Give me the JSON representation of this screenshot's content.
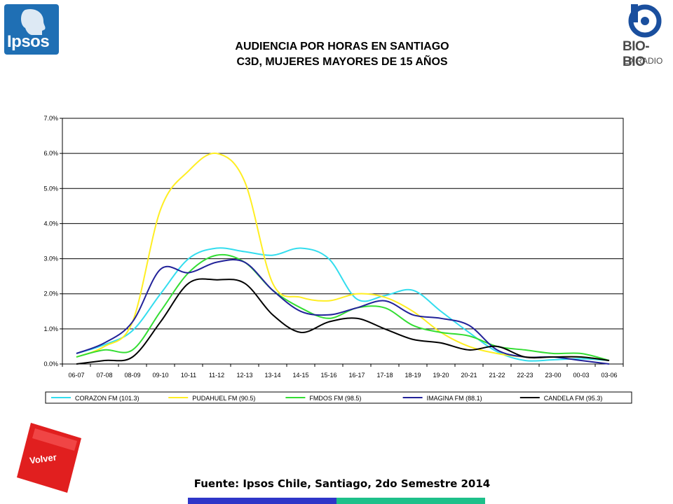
{
  "title_line1": "AUDIENCIA POR HORAS EN SANTIAGO",
  "title_line2": "C3D, MUJERES MAYORES DE 15 AÑOS",
  "source": "Fuente: Ipsos Chile, Santiago, 2do Semestre 2014",
  "logos": {
    "left": "Ipsos",
    "right_main": "BIO-BIO",
    "right_sub": "LA RADIO"
  },
  "button_volver": "Volver",
  "colors": {
    "ipsos_blue": "#1f6fb4",
    "volver_red": "#e11f1f",
    "bar_blue": "#2e36c8",
    "bar_teal": "#1ec08a"
  },
  "chart_data": {
    "type": "line",
    "title": "",
    "xlabel": "",
    "ylabel": "",
    "ylim": [
      0,
      7
    ],
    "yticks": [
      "0.0%",
      "1.0%",
      "2.0%",
      "3.0%",
      "4.0%",
      "5.0%",
      "6.0%",
      "7.0%"
    ],
    "grid": true,
    "legend_position": "bottom",
    "categories": [
      "06-07",
      "07-08",
      "08-09",
      "09-10",
      "10-11",
      "11-12",
      "12-13",
      "13-14",
      "14-15",
      "15-16",
      "16-17",
      "17-18",
      "18-19",
      "19-20",
      "20-21",
      "21-22",
      "22-23",
      "23-00",
      "00-03",
      "03-06"
    ],
    "series": [
      {
        "name": "CORAZON FM (101.3)",
        "color": "#33ddee",
        "values": [
          0.3,
          0.55,
          0.95,
          2.0,
          3.0,
          3.3,
          3.2,
          3.1,
          3.3,
          3.0,
          1.85,
          1.95,
          2.1,
          1.5,
          0.9,
          0.35,
          0.1,
          0.12,
          0.15,
          0.1
        ]
      },
      {
        "name": "PUDAHUEL FM (90.5)",
        "color": "#ffee22",
        "values": [
          0.2,
          0.5,
          1.2,
          4.4,
          5.5,
          6.0,
          5.2,
          2.3,
          1.9,
          1.8,
          2.0,
          1.9,
          1.5,
          0.9,
          0.5,
          0.3,
          0.2,
          0.2,
          0.2,
          0.1
        ]
      },
      {
        "name": "FMDOS FM (98.5)",
        "color": "#33dd33",
        "values": [
          0.2,
          0.4,
          0.4,
          1.5,
          2.6,
          3.1,
          2.9,
          2.1,
          1.6,
          1.3,
          1.6,
          1.6,
          1.1,
          0.9,
          0.8,
          0.5,
          0.4,
          0.3,
          0.3,
          0.1
        ]
      },
      {
        "name": "IMAGINA FM (88.1)",
        "color": "#222299",
        "values": [
          0.3,
          0.6,
          1.2,
          2.7,
          2.6,
          2.9,
          2.9,
          2.1,
          1.5,
          1.4,
          1.6,
          1.8,
          1.4,
          1.3,
          1.1,
          0.4,
          0.2,
          0.2,
          0.1,
          0.0
        ]
      },
      {
        "name": "CANDELA FM (95.3)",
        "color": "#000000",
        "values": [
          0.0,
          0.1,
          0.2,
          1.2,
          2.3,
          2.4,
          2.3,
          1.4,
          0.9,
          1.2,
          1.3,
          1.0,
          0.7,
          0.6,
          0.4,
          0.5,
          0.2,
          0.2,
          0.2,
          0.1
        ]
      }
    ]
  }
}
